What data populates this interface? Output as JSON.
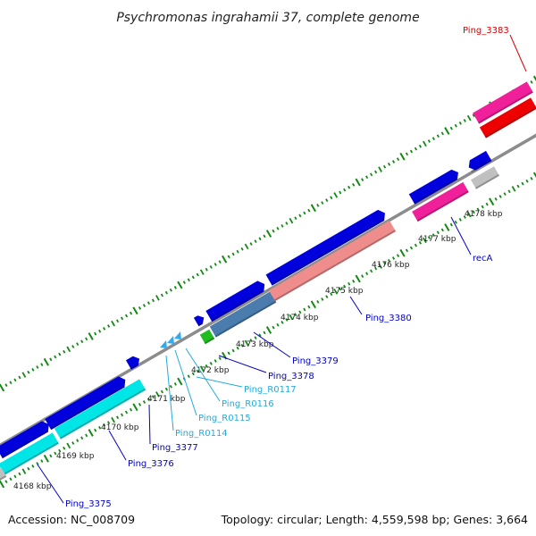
{
  "title": "Psychromonas ingrahamii 37, complete genome",
  "accession": "Accession: NC_008709",
  "topology": "Topology: circular; Length: 4,559,598 bp; Genes: 3,664",
  "colors": {
    "backbone": "#8c8c8c",
    "tick": "#118a11",
    "gene_blue": "#0000dd",
    "gene_cyan": "#00e6e6",
    "gene_pink": "#f0209a",
    "gene_red": "#ee0000",
    "gene_salmon": "#ef8c8c",
    "gene_steel": "#4a7cae",
    "gene_green": "#22bb22",
    "gene_grey": "#c0c0c0",
    "trna": "#33aaee"
  },
  "kbp_labels": [
    "4168 kbp",
    "4169 kbp",
    "4170 kbp",
    "4171 kbp",
    "4172 kbp",
    "4173 kbp",
    "4174 kbp",
    "4175 kbp",
    "4176 kbp",
    "4177 kbp",
    "4178 kbp"
  ],
  "gene_labels": [
    {
      "text": "Ping_3375",
      "color": "#0000cc"
    },
    {
      "text": "Ping_3376",
      "color": "#0000cc"
    },
    {
      "text": "Ping_3377",
      "color": "#0000cc"
    },
    {
      "text": "Ping_R0114",
      "color": "#22aadd"
    },
    {
      "text": "Ping_R0115",
      "color": "#22aadd"
    },
    {
      "text": "Ping_R0116",
      "color": "#22aadd"
    },
    {
      "text": "Ping_R0117",
      "color": "#22aadd"
    },
    {
      "text": "Ping_3378",
      "color": "#0000cc"
    },
    {
      "text": "Ping_3379",
      "color": "#0000cc"
    },
    {
      "text": "Ping_3380",
      "color": "#0000cc"
    },
    {
      "text": "recA",
      "color": "#0000cc"
    },
    {
      "text": "Ping_3383",
      "color": "#dd0000"
    }
  ]
}
